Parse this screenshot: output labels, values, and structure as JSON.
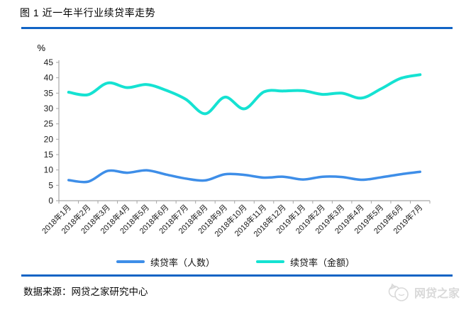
{
  "page": {
    "title": "图  1 近一年半行业续贷率走势",
    "source_note": "数据来源：网贷之家研究中心",
    "watermark_label": "网贷之家",
    "accent_color": "#1164c5",
    "watermark_color": "#d9d9d9"
  },
  "chart_data": {
    "type": "line",
    "title": "图 1 近一年半行业续贷率走势",
    "unit": "%",
    "categories": [
      "2018年1月",
      "2018年2月",
      "2018年3月",
      "2018年4月",
      "2018年5月",
      "2018年6月",
      "2018年7月",
      "2018年8月",
      "2018年9月",
      "2018年10月",
      "2018年11月",
      "2018年12月",
      "2019年1月",
      "2019年2月",
      "2019年3月",
      "2019年4月",
      "2019年5月",
      "2019年6月",
      "2019年7月"
    ],
    "series": [
      {
        "name": "续贷率（人数）",
        "color": "#3e8ee8",
        "values": [
          6.7,
          6.2,
          9.7,
          9.1,
          9.9,
          8.5,
          7.2,
          6.6,
          8.6,
          8.4,
          7.5,
          7.8,
          6.9,
          7.8,
          7.7,
          6.8,
          7.6,
          8.6,
          9.4
        ]
      },
      {
        "name": "续贷率（金额）",
        "color": "#15e2d2",
        "values": [
          35.3,
          34.5,
          38.3,
          36.8,
          37.8,
          35.9,
          33.0,
          28.3,
          33.7,
          29.9,
          35.4,
          35.7,
          35.8,
          34.6,
          35.0,
          33.4,
          36.4,
          39.8,
          41.0
        ]
      }
    ],
    "ylim": [
      0,
      45
    ],
    "ytick_step": 5,
    "grid": false,
    "legend_position": "bottom",
    "axis_color": "#a6a6a6",
    "tick_label_color": "#1a1a1a"
  }
}
